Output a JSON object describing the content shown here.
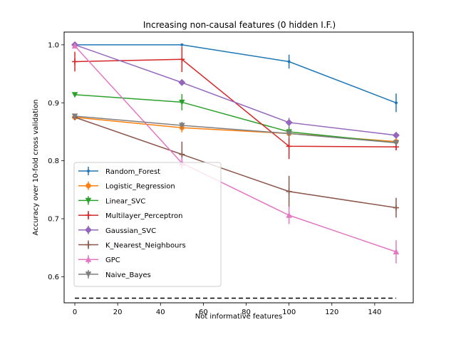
{
  "chart_data": {
    "type": "line",
    "title": "Increasing non-causal features  (0 hidden I.F.)",
    "xlabel": "Not informative features",
    "ylabel": "Accuracy over 10-fold cross validation",
    "xlim": [
      -5,
      158
    ],
    "ylim": [
      0.555,
      1.022
    ],
    "x_ticks": [
      0,
      20,
      40,
      60,
      80,
      100,
      120,
      140
    ],
    "y_ticks": [
      0.6,
      0.7,
      0.8,
      0.9,
      1.0
    ],
    "y_tick_labels": [
      "0.6",
      "0.7",
      "0.8",
      "0.9",
      "1.0"
    ],
    "grid": false,
    "legend_position": "lower-left",
    "x": [
      0,
      50,
      100,
      150
    ],
    "series": [
      {
        "name": "Random_Forest",
        "color": "#1f77b4",
        "marker": "point",
        "values": [
          1.0,
          1.0,
          0.971,
          0.9
        ],
        "errors": [
          0.0,
          0.0,
          0.012,
          0.016
        ]
      },
      {
        "name": "Logistic_Regression",
        "color": "#ff7f0e",
        "marker": "circle",
        "values": [
          0.875,
          0.857,
          0.847,
          0.833
        ],
        "errors": [
          0.005,
          0.008,
          0.01,
          0.006
        ]
      },
      {
        "name": "Linear_SVC",
        "color": "#2ca02c",
        "marker": "triangle-down",
        "values": [
          0.914,
          0.901,
          0.85,
          0.831
        ],
        "errors": [
          0.004,
          0.014,
          0.008,
          0.005
        ]
      },
      {
        "name": "Multilayer_Perceptron",
        "color": "#d62728",
        "marker": "plus",
        "values": [
          0.971,
          0.975,
          0.825,
          0.824
        ],
        "errors": [
          0.017,
          0.022,
          0.022,
          0.006
        ]
      },
      {
        "name": "Gaussian_SVC",
        "color": "#9467bd",
        "marker": "diamond",
        "values": [
          1.0,
          0.935,
          0.866,
          0.844
        ],
        "errors": [
          0.0,
          0.004,
          0.008,
          0.005
        ]
      },
      {
        "name": "K_Nearest_Neighbours",
        "color": "#8c564b",
        "marker": "plus",
        "values": [
          0.875,
          0.811,
          0.747,
          0.719
        ],
        "errors": [
          0.004,
          0.022,
          0.027,
          0.017
        ]
      },
      {
        "name": "GPC",
        "color": "#e377c2",
        "marker": "triangle-up",
        "values": [
          0.998,
          0.796,
          0.706,
          0.643
        ],
        "errors": [
          0.004,
          0.01,
          0.015,
          0.02
        ]
      },
      {
        "name": "Naive_Bayes",
        "color": "#7f7f7f",
        "marker": "triangle-down",
        "values": [
          0.877,
          0.861,
          0.847,
          0.831
        ],
        "errors": [
          0.003,
          0.006,
          0.008,
          0.005
        ]
      }
    ],
    "reference_line": {
      "y": 0.563,
      "x_range": [
        0,
        150
      ],
      "color": "#000000",
      "style": "dashed"
    }
  }
}
